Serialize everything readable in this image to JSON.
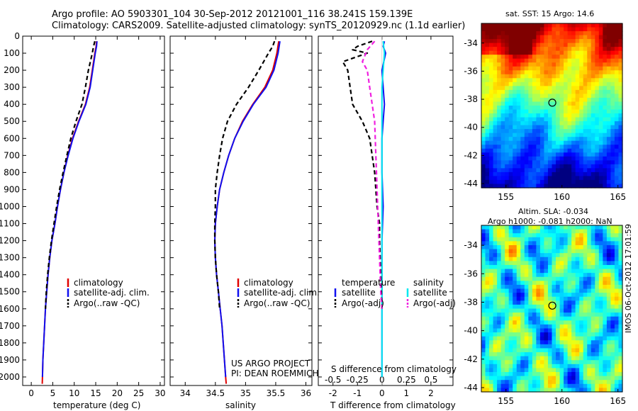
{
  "header": {
    "line1": "Argo profile: AO 5903301_104 30-Sep-2012 20121001_116 38.241S 159.139E",
    "line2": "Climatology: CARS2009. Satellite-adjusted climatology: synTS_20120929.nc (1.1d earlier)"
  },
  "project": {
    "line1": "US ARGO PROJECT",
    "line2": "PI: DEAN ROEMMICH"
  },
  "stamp": "IMOS 06-Oct-2012 17:01:59",
  "colors": {
    "climatology": "#e00000",
    "satellite_t": "#1010f0",
    "argo": "#000000",
    "satellite_s": "#00e8f0",
    "argo_s": "#f020e0"
  },
  "chart_data": [
    {
      "type": "line",
      "name": "temperature",
      "xlabel": "temperature (deg C)",
      "xlim": [
        -2,
        31
      ],
      "ylim": [
        2050,
        0
      ],
      "xticks": [
        0,
        5,
        10,
        15,
        20,
        25,
        30
      ],
      "yticks": [
        0,
        100,
        200,
        300,
        400,
        500,
        600,
        700,
        800,
        900,
        1000,
        1100,
        1200,
        1300,
        1400,
        1500,
        1600,
        1700,
        1800,
        1900,
        2000
      ],
      "legend": {
        "position": "lower-center",
        "entries": [
          "climatology",
          "satellite-adj. clim.",
          "Argo(..raw -QC)"
        ]
      },
      "series": [
        {
          "name": "climatology",
          "color": "#e00000",
          "dash": "solid",
          "points": [
            [
              15.2,
              30
            ],
            [
              15.1,
              60
            ],
            [
              14.8,
              100
            ],
            [
              14.2,
              200
            ],
            [
              13.6,
              300
            ],
            [
              12.6,
              400
            ],
            [
              11.0,
              500
            ],
            [
              9.6,
              600
            ],
            [
              8.5,
              700
            ],
            [
              7.6,
              800
            ],
            [
              6.8,
              900
            ],
            [
              6.1,
              1000
            ],
            [
              5.5,
              1100
            ],
            [
              4.8,
              1200
            ],
            [
              4.3,
              1300
            ],
            [
              3.9,
              1400
            ],
            [
              3.6,
              1500
            ],
            [
              3.3,
              1600
            ],
            [
              3.1,
              1700
            ],
            [
              2.9,
              1800
            ],
            [
              2.7,
              1900
            ],
            [
              2.6,
              2000
            ],
            [
              2.55,
              2040
            ]
          ]
        },
        {
          "name": "satellite-adj. clim.",
          "color": "#1010f0",
          "dash": "solid",
          "points": [
            [
              15.3,
              30
            ],
            [
              15.2,
              60
            ],
            [
              14.9,
              100
            ],
            [
              14.3,
              200
            ],
            [
              13.7,
              300
            ],
            [
              12.7,
              400
            ],
            [
              11.1,
              500
            ],
            [
              9.7,
              600
            ],
            [
              8.6,
              700
            ],
            [
              7.6,
              800
            ],
            [
              6.8,
              900
            ],
            [
              6.1,
              1000
            ],
            [
              5.5,
              1100
            ],
            [
              4.8,
              1200
            ],
            [
              4.3,
              1300
            ],
            [
              3.9,
              1400
            ],
            [
              3.6,
              1500
            ],
            [
              3.3,
              1600
            ],
            [
              3.1,
              1700
            ],
            [
              2.9,
              1800
            ],
            [
              2.7,
              1900
            ],
            [
              2.6,
              2000
            ]
          ]
        },
        {
          "name": "Argo(..raw -QC)",
          "color": "#000000",
          "dash": "dashed",
          "points": [
            [
              14.8,
              30
            ],
            [
              14.5,
              60
            ],
            [
              14.2,
              100
            ],
            [
              13.3,
              200
            ],
            [
              12.6,
              300
            ],
            [
              11.8,
              400
            ],
            [
              10.4,
              500
            ],
            [
              9.2,
              600
            ],
            [
              8.3,
              700
            ],
            [
              7.4,
              800
            ],
            [
              6.6,
              900
            ],
            [
              5.9,
              1000
            ],
            [
              5.3,
              1100
            ],
            [
              4.7,
              1200
            ],
            [
              4.2,
              1300
            ],
            [
              3.8,
              1400
            ],
            [
              3.5,
              1500
            ],
            [
              3.3,
              1600
            ]
          ]
        }
      ]
    },
    {
      "type": "line",
      "name": "salinity",
      "xlabel": "salinity",
      "xlim": [
        33.75,
        36.1
      ],
      "ylim": [
        2050,
        0
      ],
      "xticks": [
        34,
        34.5,
        35,
        35.5,
        36
      ],
      "legend": {
        "position": "lower-center",
        "entries": [
          "climatology",
          "satellite-adj. clim.",
          "Argo(..raw -QC)"
        ]
      },
      "series": [
        {
          "name": "climatology",
          "color": "#e00000",
          "dash": "solid",
          "points": [
            [
              35.55,
              30
            ],
            [
              35.52,
              100
            ],
            [
              35.45,
              200
            ],
            [
              35.32,
              300
            ],
            [
              35.12,
              400
            ],
            [
              34.95,
              500
            ],
            [
              34.82,
              600
            ],
            [
              34.72,
              700
            ],
            [
              34.64,
              800
            ],
            [
              34.57,
              900
            ],
            [
              34.53,
              1000
            ],
            [
              34.5,
              1100
            ],
            [
              34.49,
              1200
            ],
            [
              34.5,
              1300
            ],
            [
              34.52,
              1400
            ],
            [
              34.55,
              1500
            ],
            [
              34.58,
              1600
            ],
            [
              34.61,
              1700
            ],
            [
              34.63,
              1800
            ],
            [
              34.65,
              1900
            ],
            [
              34.67,
              2000
            ],
            [
              34.68,
              2040
            ]
          ]
        },
        {
          "name": "satellite-adj. clim.",
          "color": "#1010f0",
          "dash": "solid",
          "points": [
            [
              35.57,
              30
            ],
            [
              35.54,
              100
            ],
            [
              35.47,
              200
            ],
            [
              35.34,
              300
            ],
            [
              35.13,
              400
            ],
            [
              34.96,
              500
            ],
            [
              34.82,
              600
            ],
            [
              34.72,
              700
            ],
            [
              34.64,
              800
            ],
            [
              34.57,
              900
            ],
            [
              34.53,
              1000
            ],
            [
              34.5,
              1100
            ],
            [
              34.49,
              1200
            ],
            [
              34.5,
              1300
            ],
            [
              34.52,
              1400
            ],
            [
              34.55,
              1500
            ],
            [
              34.58,
              1600
            ],
            [
              34.61,
              1700
            ],
            [
              34.63,
              1800
            ],
            [
              34.65,
              1900
            ],
            [
              34.67,
              2000
            ]
          ]
        },
        {
          "name": "Argo(..raw -QC)",
          "color": "#000000",
          "dash": "dashed",
          "points": [
            [
              35.48,
              30
            ],
            [
              35.45,
              60
            ],
            [
              35.38,
              100
            ],
            [
              35.22,
              200
            ],
            [
              35.05,
              300
            ],
            [
              34.85,
              400
            ],
            [
              34.7,
              500
            ],
            [
              34.62,
              600
            ],
            [
              34.57,
              700
            ],
            [
              34.53,
              800
            ],
            [
              34.5,
              900
            ],
            [
              34.5,
              1000
            ],
            [
              34.49,
              1100
            ],
            [
              34.49,
              1200
            ],
            [
              34.5,
              1300
            ],
            [
              34.52,
              1400
            ],
            [
              34.55,
              1500
            ],
            [
              34.57,
              1600
            ]
          ]
        }
      ]
    },
    {
      "type": "line",
      "name": "difference",
      "xlabel": "T difference from climatology",
      "xlabel_top": "S difference from climatology",
      "xlim": [
        -2.6,
        2.9
      ],
      "ylim": [
        2050,
        0
      ],
      "xticks": [
        -2,
        -1,
        0,
        1,
        2
      ],
      "xticks_s": [
        -0.5,
        -0.25,
        0,
        0.25,
        0.5
      ],
      "legend": {
        "position": "lower",
        "entries": [
          "temperature",
          "salinity",
          "satellite",
          "satellite",
          "Argo(-adj)",
          "Argo(-adj)"
        ]
      },
      "series": [
        {
          "name": "temperature satellite",
          "color": "#1010f0",
          "dash": "solid",
          "points": [
            [
              0.1,
              30
            ],
            [
              0.05,
              60
            ],
            [
              0.15,
              100
            ],
            [
              0,
              200
            ],
            [
              0.05,
              300
            ],
            [
              0.1,
              400
            ],
            [
              0.05,
              500
            ],
            [
              0,
              600
            ],
            [
              0,
              800
            ],
            [
              0.05,
              1000
            ],
            [
              0,
              1200
            ],
            [
              0,
              1400
            ],
            [
              0,
              2000
            ]
          ]
        },
        {
          "name": "salinity satellite",
          "color": "#00e8f0",
          "dash": "solid",
          "points": [
            [
              0.05,
              30
            ],
            [
              0.1,
              100
            ],
            [
              0.05,
              200
            ],
            [
              0,
              300
            ],
            [
              0,
              2000
            ]
          ]
        },
        {
          "name": "temperature Argo(-adj)",
          "color": "#000000",
          "dash": "dashed",
          "points": [
            [
              -0.4,
              30
            ],
            [
              -1.0,
              60
            ],
            [
              -1.2,
              80
            ],
            [
              -0.6,
              100
            ],
            [
              -1.6,
              150
            ],
            [
              -1.4,
              200
            ],
            [
              -1.3,
              300
            ],
            [
              -1.2,
              400
            ],
            [
              -0.8,
              500
            ],
            [
              -0.5,
              600
            ],
            [
              -0.4,
              700
            ],
            [
              -0.3,
              800
            ],
            [
              -0.25,
              900
            ],
            [
              -0.2,
              1000
            ],
            [
              -0.1,
              1100
            ],
            [
              -0.1,
              1200
            ],
            [
              -0.05,
              1400
            ],
            [
              0,
              1600
            ]
          ]
        },
        {
          "name": "salinity Argo(-adj)",
          "color": "#f020e0",
          "dash": "dashed",
          "points": [
            [
              -0.3,
              30
            ],
            [
              -0.6,
              80
            ],
            [
              -0.8,
              150
            ],
            [
              -0.6,
              200
            ],
            [
              -0.5,
              300
            ],
            [
              -0.4,
              400
            ],
            [
              -0.3,
              500
            ],
            [
              -0.25,
              700
            ],
            [
              -0.2,
              900
            ],
            [
              -0.15,
              1100
            ],
            [
              -0.1,
              1300
            ],
            [
              -0.05,
              1500
            ],
            [
              0,
              1600
            ]
          ]
        }
      ]
    }
  ],
  "maps": [
    {
      "title": "sat. SST: 15 Argo: 14.6",
      "xticks": [
        155,
        160,
        165
      ],
      "yticks": [
        -34,
        -36,
        -38,
        -40,
        -42,
        -44
      ],
      "xlim": [
        152.8,
        165.4
      ],
      "ylim": [
        -44.3,
        -32.6
      ],
      "marker": [
        159.139,
        -38.241
      ],
      "colormap": "jet"
    },
    {
      "title_line1": "Altim. SLA: -0.034",
      "title_line2": "Argo h1000: -0.081 h2000: NaN",
      "xticks": [
        155,
        160,
        165
      ],
      "yticks": [
        -34,
        -36,
        -38,
        -40,
        -42,
        -44
      ],
      "xlim": [
        152.8,
        165.4
      ],
      "ylim": [
        -44.3,
        -32.6
      ],
      "marker": [
        159.139,
        -38.241
      ],
      "colormap": "jet"
    }
  ]
}
